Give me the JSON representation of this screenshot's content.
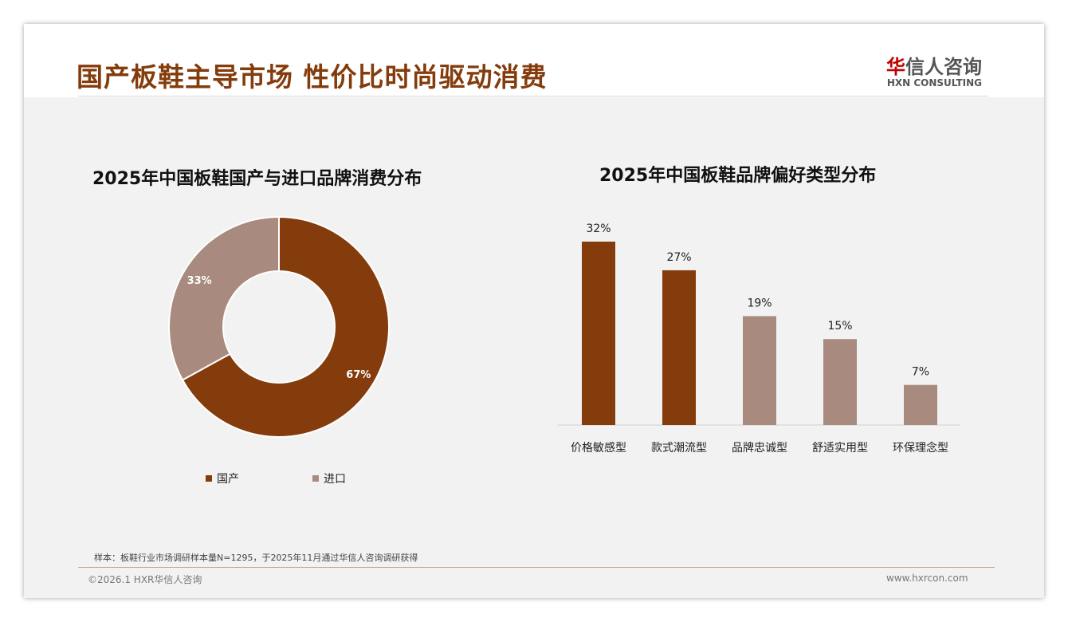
{
  "header": {
    "title": "国产板鞋主导市场 性价比时尚驱动消费",
    "logo_cn": "华信人咨询",
    "logo_en": "HXN CONSULTING"
  },
  "footer": {
    "note": "样本：板鞋行业市场调研样本量N=1295，于2025年11月通过华信人咨询调研获得",
    "copyright": "©2026.1 HXR华信人咨询",
    "website": "www.hxrcon.com"
  },
  "colors": {
    "dark": "#843C0C",
    "light": "#A88B7E"
  },
  "chart_data": [
    {
      "type": "pie",
      "title": "2025年中国板鞋国产与进口品牌消费分布",
      "categories": [
        "国产",
        "进口"
      ],
      "values": [
        67,
        33
      ],
      "labels": [
        "67%",
        "33%"
      ],
      "legend": "bottom"
    },
    {
      "type": "bar",
      "title": "2025年中国板鞋品牌偏好类型分布",
      "categories": [
        "价格敏感型",
        "款式潮流型",
        "品牌忠诚型",
        "舒适实用型",
        "环保理念型"
      ],
      "values": [
        32,
        27,
        19,
        15,
        7
      ],
      "labels": [
        "32%",
        "27%",
        "19%",
        "15%",
        "7%"
      ],
      "ylim": [
        0,
        35
      ]
    }
  ]
}
